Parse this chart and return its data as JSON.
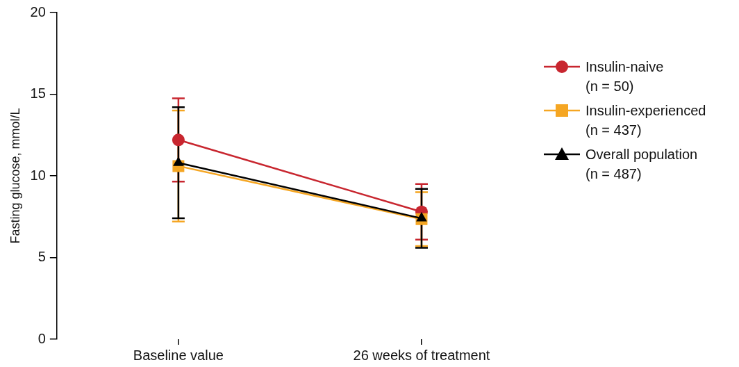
{
  "chart_data": {
    "type": "line",
    "ylabel": "Fasting glucose, mmol/L",
    "categories": [
      "Baseline value",
      "26 weeks of treatment"
    ],
    "ylim": [
      0,
      20
    ],
    "yticks": [
      0,
      5,
      10,
      15,
      20
    ],
    "grid": false,
    "legend": "right",
    "line_style": "solid",
    "series": [
      {
        "name": "Insulin-naive\n(n = 50)",
        "color": "#c8262f",
        "marker": "circle",
        "values": [
          12.2,
          7.8
        ],
        "errors": [
          2.55,
          1.7
        ]
      },
      {
        "name": "Insulin-experienced\n(n = 437)",
        "color": "#f5a623",
        "marker": "square",
        "values": [
          10.6,
          7.35
        ],
        "errors": [
          3.4,
          1.65
        ]
      },
      {
        "name": "Overall population\n(n = 487)",
        "color": "#000000",
        "marker": "triangle",
        "values": [
          10.8,
          7.4
        ],
        "errors": [
          3.4,
          1.8
        ]
      }
    ]
  }
}
